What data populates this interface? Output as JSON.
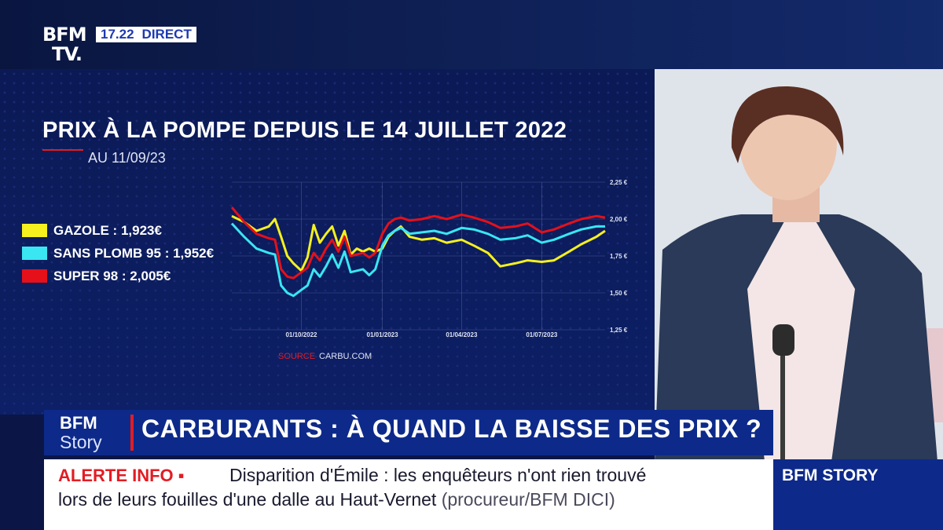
{
  "header": {
    "logo_line1": "BFM",
    "logo_line2": "TV.",
    "time": "17.22",
    "live_label": "DIRECT"
  },
  "graphic": {
    "title": "PRIX À LA POMPE DEPUIS LE 14 JUILLET 2022",
    "subtitle": "AU 11/09/23",
    "source_label": "SOURCE",
    "source_value": "CARBU.COM",
    "legend": [
      {
        "label": "GAZOLE : 1,923€",
        "color": "#f5f01e"
      },
      {
        "label": "SANS PLOMB 95 : 1,952€",
        "color": "#39e6f2"
      },
      {
        "label": "SUPER 98 : 2,005€",
        "color": "#e5101a"
      }
    ]
  },
  "chart_data": {
    "type": "line",
    "title": "PRIX À LA POMPE DEPUIS LE 14 JUILLET 2022",
    "subtitle": "AU 11/09/23",
    "xlabel": "",
    "ylabel": "",
    "x_range": [
      "2022-07-14",
      "2023-09-11"
    ],
    "ylim": [
      1.25,
      2.25
    ],
    "y_ticks": [
      "2,25 €",
      "2,00 €",
      "1,75 €",
      "1,50 €",
      "1,25 €"
    ],
    "y_tick_values": [
      2.25,
      2.0,
      1.75,
      1.5,
      1.25
    ],
    "x_ticks": [
      "01/10/2022",
      "01/01/2023",
      "01/04/2023",
      "01/07/2023"
    ],
    "x_tick_dates": [
      "2022-10-01",
      "2023-01-01",
      "2023-04-01",
      "2023-07-01"
    ],
    "grid": true,
    "series": [
      {
        "name": "GAZOLE : 1,923€",
        "color": "#f5f01e",
        "x": [
          "2022-07-14",
          "2022-07-28",
          "2022-08-11",
          "2022-08-25",
          "2022-09-01",
          "2022-09-08",
          "2022-09-15",
          "2022-09-22",
          "2022-10-01",
          "2022-10-08",
          "2022-10-15",
          "2022-10-22",
          "2022-10-29",
          "2022-11-05",
          "2022-11-12",
          "2022-11-19",
          "2022-11-26",
          "2022-12-03",
          "2022-12-10",
          "2022-12-17",
          "2022-12-24",
          "2023-01-01",
          "2023-01-08",
          "2023-01-15",
          "2023-01-22",
          "2023-02-01",
          "2023-02-15",
          "2023-03-01",
          "2023-03-15",
          "2023-04-01",
          "2023-04-15",
          "2023-05-01",
          "2023-05-15",
          "2023-06-01",
          "2023-06-15",
          "2023-07-01",
          "2023-07-15",
          "2023-08-01",
          "2023-08-15",
          "2023-09-01",
          "2023-09-11"
        ],
        "values": [
          2.02,
          1.98,
          1.92,
          1.95,
          2.0,
          1.88,
          1.75,
          1.7,
          1.65,
          1.74,
          1.96,
          1.84,
          1.9,
          1.95,
          1.82,
          1.92,
          1.76,
          1.8,
          1.78,
          1.8,
          1.78,
          1.8,
          1.88,
          1.92,
          1.95,
          1.88,
          1.86,
          1.87,
          1.84,
          1.86,
          1.82,
          1.77,
          1.68,
          1.7,
          1.72,
          1.71,
          1.72,
          1.78,
          1.83,
          1.88,
          1.92
        ]
      },
      {
        "name": "SANS PLOMB 95 : 1,952€",
        "color": "#39e6f2",
        "x": [
          "2022-07-14",
          "2022-07-28",
          "2022-08-11",
          "2022-08-25",
          "2022-09-01",
          "2022-09-08",
          "2022-09-15",
          "2022-09-22",
          "2022-10-01",
          "2022-10-08",
          "2022-10-15",
          "2022-10-22",
          "2022-10-29",
          "2022-11-05",
          "2022-11-12",
          "2022-11-19",
          "2022-11-26",
          "2022-12-03",
          "2022-12-10",
          "2022-12-17",
          "2022-12-24",
          "2023-01-01",
          "2023-01-08",
          "2023-01-15",
          "2023-01-22",
          "2023-02-01",
          "2023-02-15",
          "2023-03-01",
          "2023-03-15",
          "2023-04-01",
          "2023-04-15",
          "2023-05-01",
          "2023-05-15",
          "2023-06-01",
          "2023-06-15",
          "2023-07-01",
          "2023-07-15",
          "2023-08-01",
          "2023-08-15",
          "2023-09-01",
          "2023-09-11"
        ],
        "values": [
          1.97,
          1.88,
          1.8,
          1.77,
          1.76,
          1.55,
          1.5,
          1.48,
          1.52,
          1.55,
          1.66,
          1.61,
          1.68,
          1.76,
          1.67,
          1.78,
          1.64,
          1.65,
          1.66,
          1.62,
          1.66,
          1.82,
          1.89,
          1.92,
          1.94,
          1.9,
          1.91,
          1.92,
          1.9,
          1.94,
          1.93,
          1.9,
          1.86,
          1.87,
          1.89,
          1.84,
          1.86,
          1.9,
          1.93,
          1.95,
          1.95
        ]
      },
      {
        "name": "SUPER 98 : 2,005€",
        "color": "#e5101a",
        "x": [
          "2022-07-14",
          "2022-07-28",
          "2022-08-11",
          "2022-08-25",
          "2022-09-01",
          "2022-09-08",
          "2022-09-15",
          "2022-09-22",
          "2022-10-01",
          "2022-10-08",
          "2022-10-15",
          "2022-10-22",
          "2022-10-29",
          "2022-11-05",
          "2022-11-12",
          "2022-11-19",
          "2022-11-26",
          "2022-12-03",
          "2022-12-10",
          "2022-12-17",
          "2022-12-24",
          "2023-01-01",
          "2023-01-08",
          "2023-01-15",
          "2023-01-22",
          "2023-02-01",
          "2023-02-15",
          "2023-03-01",
          "2023-03-15",
          "2023-04-01",
          "2023-04-15",
          "2023-05-01",
          "2023-05-15",
          "2023-06-01",
          "2023-06-15",
          "2023-07-01",
          "2023-07-15",
          "2023-08-01",
          "2023-08-15",
          "2023-09-01",
          "2023-09-11"
        ],
        "values": [
          2.08,
          1.98,
          1.9,
          1.87,
          1.86,
          1.66,
          1.61,
          1.6,
          1.64,
          1.67,
          1.77,
          1.72,
          1.8,
          1.86,
          1.78,
          1.88,
          1.75,
          1.76,
          1.77,
          1.74,
          1.77,
          1.9,
          1.97,
          2.0,
          2.01,
          1.99,
          2.0,
          2.02,
          2.0,
          2.03,
          2.01,
          1.98,
          1.94,
          1.95,
          1.97,
          1.91,
          1.93,
          1.97,
          2.0,
          2.02,
          2.01
        ]
      }
    ]
  },
  "lower_third": {
    "brand_line1": "BFM",
    "brand_line2": "Story",
    "headline": "CARBURANTS : À QUAND LA BAISSE DES PRIX ?"
  },
  "ticker": {
    "alert_label": "ALERTE INFO ▪",
    "line1": "Disparition d'Émile : les enquêteurs n'ont rien trouvé",
    "line2": "lors de leurs fouilles d'une dalle au Haut-Vernet",
    "source": "(procureur/BFM DICI)",
    "channel": "BFM STORY"
  }
}
